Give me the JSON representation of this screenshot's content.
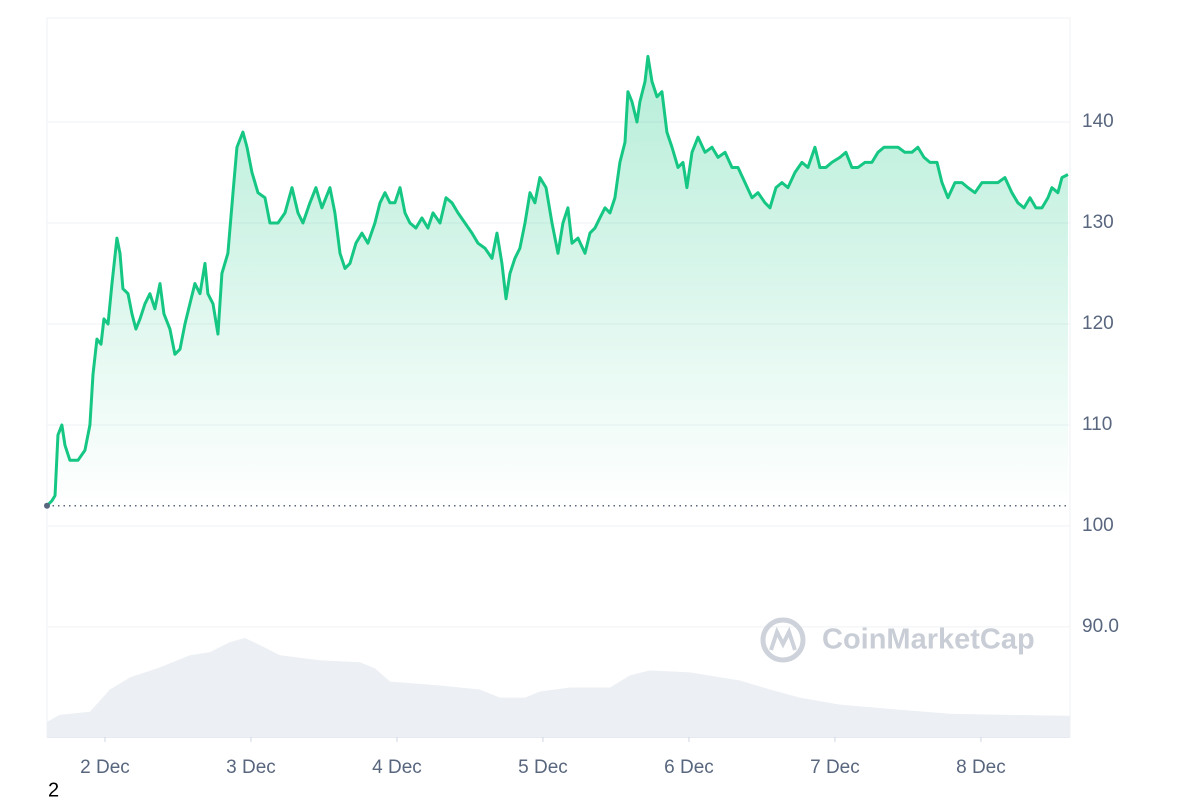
{
  "chart_data": {
    "type": "line",
    "x": [
      1.603,
      1.637,
      1.658,
      1.678,
      1.705,
      1.726,
      1.76,
      1.815,
      1.863,
      1.897,
      1.918,
      1.945,
      1.973,
      1.993,
      2.021,
      2.048,
      2.082,
      2.103,
      2.123,
      2.158,
      2.185,
      2.212,
      2.24,
      2.274,
      2.308,
      2.342,
      2.377,
      2.404,
      2.445,
      2.479,
      2.514,
      2.548,
      2.582,
      2.616,
      2.651,
      2.685,
      2.705,
      2.74,
      2.774,
      2.801,
      2.842,
      2.877,
      2.904,
      2.945,
      2.973,
      3.007,
      3.048,
      3.096,
      3.13,
      3.185,
      3.233,
      3.281,
      3.322,
      3.356,
      3.404,
      3.445,
      3.486,
      3.541,
      3.575,
      3.61,
      3.644,
      3.678,
      3.719,
      3.76,
      3.801,
      3.849,
      3.884,
      3.918,
      3.952,
      3.986,
      4.021,
      4.055,
      4.089,
      4.13,
      4.171,
      4.212,
      4.247,
      4.295,
      4.336,
      4.377,
      4.418,
      4.466,
      4.514,
      4.555,
      4.603,
      4.651,
      4.685,
      4.719,
      4.747,
      4.774,
      4.808,
      4.842,
      4.877,
      4.911,
      4.945,
      4.979,
      5.021,
      5.062,
      5.103,
      5.137,
      5.171,
      5.199,
      5.24,
      5.288,
      5.322,
      5.356,
      5.39,
      5.425,
      5.459,
      5.493,
      5.527,
      5.562,
      5.582,
      5.61,
      5.644,
      5.664,
      5.699,
      5.719,
      5.747,
      5.781,
      5.815,
      5.849,
      5.884,
      5.925,
      5.959,
      5.986,
      6.021,
      6.062,
      6.11,
      6.158,
      6.199,
      6.247,
      6.295,
      6.336,
      6.384,
      6.432,
      6.473,
      6.521,
      6.555,
      6.596,
      6.637,
      6.678,
      6.726,
      6.774,
      6.815,
      6.863,
      6.897,
      6.938,
      6.979,
      7.034,
      7.075,
      7.116,
      7.158,
      7.205,
      7.253,
      7.295,
      7.336,
      7.377,
      7.432,
      7.479,
      7.527,
      7.568,
      7.61,
      7.651,
      7.699,
      7.733,
      7.774,
      7.822,
      7.87,
      7.911,
      7.959,
      8.007,
      8.062,
      8.116,
      8.164,
      8.212,
      8.253,
      8.295,
      8.336,
      8.377,
      8.418,
      8.459,
      8.486,
      8.527,
      8.555,
      8.596
    ],
    "series": [
      {
        "color": "#16c784",
        "values": [
          102.0,
          102.5,
          103,
          109,
          110,
          108,
          106.5,
          106.5,
          107.5,
          110,
          115,
          118.5,
          118,
          120.5,
          120,
          124,
          128.5,
          127,
          123.5,
          123,
          121,
          119.5,
          120.5,
          122,
          123,
          121.5,
          124,
          121,
          119.5,
          117,
          117.5,
          120,
          122,
          124,
          123,
          126,
          123,
          122,
          119,
          125,
          127,
          133,
          137.5,
          139,
          137.5,
          135,
          133,
          132.5,
          130,
          130,
          131,
          133.5,
          131,
          130,
          132,
          133.5,
          131.5,
          133.5,
          131,
          127,
          125.5,
          126,
          128,
          129,
          128,
          130,
          132,
          133,
          132,
          132,
          133.5,
          131,
          130,
          129.5,
          130.5,
          129.5,
          131,
          130,
          132.5,
          132,
          131,
          130,
          129,
          128,
          127.5,
          126.5,
          129,
          126,
          122.5,
          125,
          126.5,
          127.5,
          130,
          133,
          132,
          134.5,
          133.5,
          130,
          127,
          130,
          131.5,
          128,
          128.5,
          127,
          129,
          129.5,
          130.5,
          131.5,
          131,
          132.5,
          136,
          138,
          143,
          142,
          140,
          142,
          144,
          146.5,
          144,
          142.5,
          143,
          139,
          137.5,
          135.5,
          136,
          133.5,
          137,
          138.5,
          137,
          137.5,
          136.5,
          137,
          135.5,
          135.5,
          134,
          132.5,
          133,
          132,
          131.5,
          133.5,
          134,
          133.5,
          135,
          136,
          135.5,
          137.5,
          135.5,
          135.5,
          136,
          136.5,
          137,
          135.5,
          135.5,
          136,
          136,
          137,
          137.5,
          137.5,
          137.5,
          137,
          137,
          137.5,
          136.5,
          136,
          136,
          134,
          132.5,
          134,
          134,
          133.5,
          133,
          134,
          134,
          134,
          134.5,
          133,
          132,
          131.5,
          132.5,
          131.5,
          131.5,
          132.5,
          133.5,
          133,
          134.5,
          134.8
        ]
      }
    ],
    "baseline": 102,
    "volume": {
      "color": "#eceff3",
      "x": [
        1.603,
        1.692,
        1.897,
        2.034,
        2.171,
        2.377,
        2.582,
        2.719,
        2.856,
        2.959,
        3.062,
        3.199,
        3.473,
        3.747,
        3.849,
        3.952,
        4.295,
        4.568,
        4.705,
        4.877,
        4.979,
        5.185,
        5.459,
        5.596,
        5.733,
        6.007,
        6.349,
        6.555,
        6.76,
        7.034,
        7.445,
        7.788,
        8.13,
        8.61
      ],
      "values": [
        80.6,
        81.3,
        81.6,
        83.8,
        85.0,
        86.0,
        87.2,
        87.5,
        88.5,
        88.9,
        88.2,
        87.2,
        86.7,
        86.5,
        85.9,
        84.6,
        84.2,
        83.8,
        83.0,
        83.0,
        83.6,
        84.0,
        84.0,
        85.2,
        85.7,
        85.5,
        84.7,
        83.8,
        83.0,
        82.3,
        81.8,
        81.4,
        81.3,
        81.2
      ]
    },
    "xlim": [
      1.603,
      8.61
    ],
    "ylim": [
      79.1,
      150.3
    ],
    "xticks": [
      {
        "value": 2,
        "label": "2 Dec"
      },
      {
        "value": 3,
        "label": "3 Dec"
      },
      {
        "value": 4,
        "label": "4 Dec"
      },
      {
        "value": 5,
        "label": "5 Dec"
      },
      {
        "value": 6,
        "label": "6 Dec"
      },
      {
        "value": 7,
        "label": "7 Dec"
      },
      {
        "value": 8,
        "label": "8 Dec"
      }
    ],
    "yticks": [
      {
        "value": 90,
        "label": "90.0"
      },
      100,
      110,
      120,
      130,
      140
    ],
    "grid": true,
    "watermark": "CoinMarketCap",
    "footer_text": "2"
  }
}
